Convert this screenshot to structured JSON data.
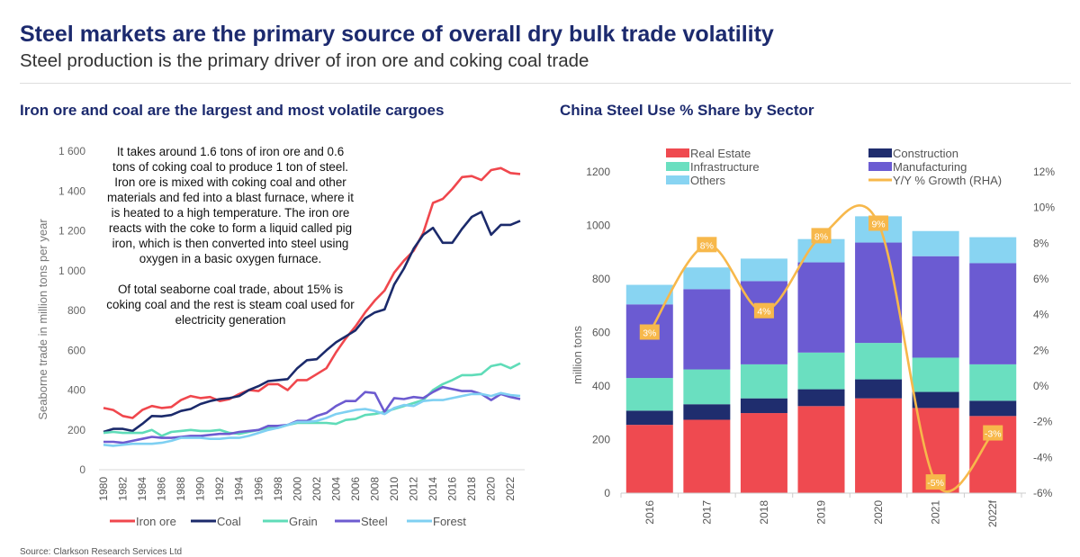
{
  "header": {
    "title": "Steel markets are the primary source of overall dry bulk trade volatility",
    "subtitle": "Steel production is the primary driver of iron ore and coking coal trade"
  },
  "source": "Source: Clarkson Research Services Ltd",
  "chart_data": [
    {
      "type": "line",
      "title": "Iron ore and coal are the largest and most volatile cargoes",
      "ylabel": "Seaborne trade in million tons per year",
      "xlabel": "",
      "ylim": [
        0,
        1600
      ],
      "yticks": [
        "0",
        "200",
        "400",
        "600",
        "800",
        "1 000",
        "1 200",
        "1 400",
        "1 600"
      ],
      "annotation": [
        "It takes around 1.6 tons of iron ore and 0.6 tons of coking coal to produce 1 ton of steel. Iron ore is mixed with coking coal and other materials and fed into a blast furnace, where it is heated to a high temperature. The iron ore reacts with the coke to form a liquid called pig iron, which is then converted into steel using oxygen in a basic oxygen furnace.",
        "Of total seaborne coal trade, about 15% is coking coal and the rest is steam coal used for electricity generation"
      ],
      "legend_position": "bottom",
      "x_start": 1980,
      "x_end": 2023,
      "xticks": [
        "1980",
        "1982",
        "1984",
        "1986",
        "1988",
        "1990",
        "1992",
        "1994",
        "1996",
        "1998",
        "2000",
        "2002",
        "2004",
        "2006",
        "2008",
        "2010",
        "2012",
        "2014",
        "2016",
        "2018",
        "2020",
        "2022"
      ],
      "series": [
        {
          "name": "Iron ore",
          "color": "#f0474d",
          "values": [
            310,
            300,
            270,
            260,
            300,
            320,
            310,
            315,
            350,
            370,
            360,
            365,
            345,
            355,
            380,
            400,
            395,
            430,
            430,
            400,
            450,
            450,
            480,
            510,
            590,
            660,
            720,
            790,
            850,
            900,
            990,
            1050,
            1100,
            1190,
            1340,
            1360,
            1410,
            1470,
            1475,
            1455,
            1505,
            1515,
            1490,
            1485
          ]
        },
        {
          "name": "Coal",
          "color": "#1b2a6b",
          "values": [
            190,
            205,
            205,
            195,
            230,
            270,
            268,
            275,
            295,
            305,
            330,
            345,
            355,
            360,
            370,
            400,
            420,
            445,
            450,
            455,
            510,
            550,
            555,
            600,
            640,
            670,
            700,
            760,
            790,
            805,
            930,
            1010,
            1110,
            1180,
            1215,
            1140,
            1140,
            1210,
            1270,
            1295,
            1180,
            1230,
            1230,
            1250
          ]
        },
        {
          "name": "Grain",
          "color": "#5fdcb8",
          "values": [
            185,
            190,
            185,
            185,
            185,
            200,
            170,
            190,
            195,
            200,
            195,
            195,
            200,
            185,
            180,
            190,
            200,
            210,
            210,
            225,
            235,
            235,
            235,
            235,
            230,
            250,
            255,
            275,
            280,
            290,
            305,
            320,
            335,
            350,
            400,
            430,
            450,
            475,
            475,
            480,
            520,
            530,
            510,
            535
          ]
        },
        {
          "name": "Steel",
          "color": "#6d5bd0",
          "values": [
            140,
            140,
            135,
            145,
            155,
            165,
            160,
            160,
            165,
            170,
            170,
            175,
            180,
            180,
            190,
            195,
            200,
            220,
            220,
            225,
            245,
            245,
            270,
            285,
            320,
            345,
            345,
            390,
            385,
            290,
            360,
            355,
            365,
            360,
            390,
            415,
            405,
            395,
            395,
            380,
            350,
            380,
            365,
            355
          ]
        },
        {
          "name": "Forest",
          "color": "#7fd0f2",
          "values": [
            125,
            120,
            125,
            130,
            130,
            130,
            135,
            145,
            160,
            160,
            160,
            155,
            155,
            160,
            160,
            170,
            185,
            200,
            210,
            225,
            240,
            240,
            245,
            260,
            280,
            290,
            300,
            305,
            295,
            280,
            310,
            325,
            320,
            345,
            350,
            350,
            360,
            370,
            380,
            380,
            370,
            385,
            375,
            370
          ]
        }
      ]
    },
    {
      "type": "bar",
      "stacked": true,
      "title": "China Steel Use % Share by Sector",
      "ylabel": "million tons",
      "ylim": [
        0,
        1200
      ],
      "y2lim": [
        -6,
        12
      ],
      "yticks": [
        "0",
        "200",
        "400",
        "600",
        "800",
        "1000",
        "1200"
      ],
      "y2ticks": [
        "-6%",
        "-4%",
        "-2%",
        "0%",
        "2%",
        "4%",
        "6%",
        "8%",
        "10%",
        "12%"
      ],
      "categories": [
        "2016",
        "2017",
        "2018",
        "2019",
        "2020",
        "2021",
        "2022f"
      ],
      "legend_position": "top",
      "series": [
        {
          "name": "Real Estate",
          "color": "#ef4a50",
          "values": [
            255,
            274,
            299,
            325,
            354,
            318,
            288
          ]
        },
        {
          "name": "Construction",
          "color": "#1f2d6e",
          "values": [
            53,
            58,
            55,
            63,
            71,
            60,
            57
          ]
        },
        {
          "name": "Infrastructure",
          "color": "#6adfc0",
          "values": [
            122,
            130,
            127,
            137,
            136,
            128,
            136
          ]
        },
        {
          "name": "Manufacturing",
          "color": "#6b5bd2",
          "values": [
            275,
            300,
            311,
            337,
            375,
            379,
            378
          ]
        },
        {
          "name": "Others",
          "color": "#88d4f2",
          "values": [
            73,
            81,
            84,
            87,
            98,
            94,
            97
          ]
        }
      ],
      "line": {
        "name": "Y/Y % Growth (RHA)",
        "color": "#f7b84b",
        "values": [
          3.0,
          7.9,
          4.2,
          8.4,
          9.1,
          -5.4,
          -2.65
        ],
        "labels": [
          "3%",
          "8%",
          "4%",
          "8%",
          "9%",
          "-5%",
          "-3%"
        ]
      }
    }
  ]
}
